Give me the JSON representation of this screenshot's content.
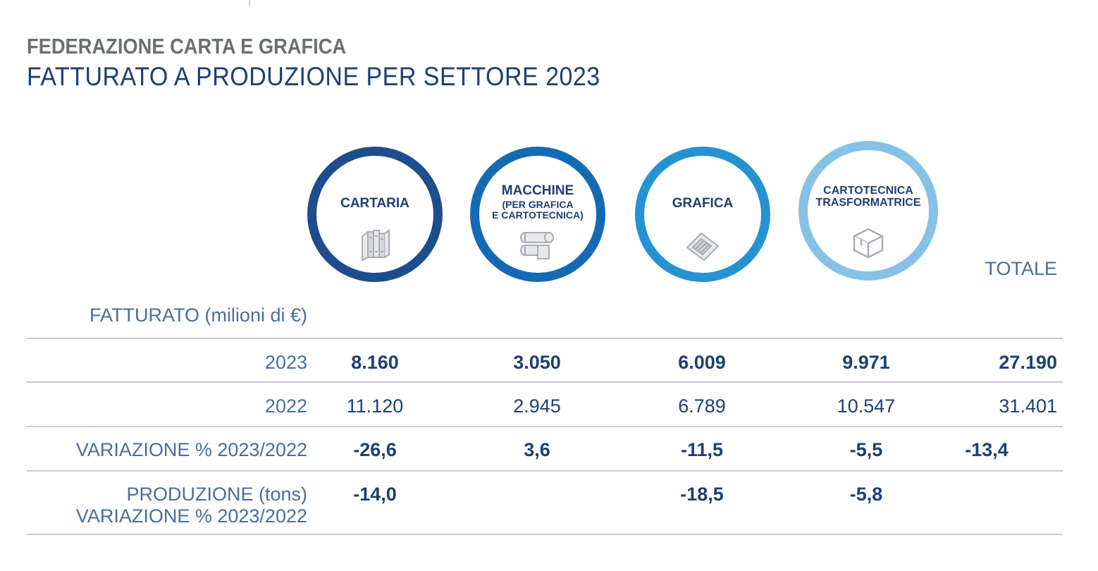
{
  "header": {
    "org": "FEDERAZIONE CARTA E GRAFICA",
    "title": "FATTURATO A PRODUZIONE PER SETTORE 2023"
  },
  "sectors": [
    {
      "label": "CARTARIA",
      "sub": "",
      "icon": "books-icon",
      "color": "#1d4d8c"
    },
    {
      "label": "MACCHINE",
      "sub": "(PER GRAFICA",
      "sub2": "E CARTOTECNICA)",
      "icon": "printing-machine-icon",
      "color": "#156bb3"
    },
    {
      "label": "GRAFICA",
      "sub": "",
      "icon": "newspaper-icon",
      "color": "#2592d3"
    },
    {
      "label": "CARTOTECNICA",
      "sub": "TRASFORMATRICE",
      "icon": "box-icon",
      "color": "#86c2e6"
    }
  ],
  "totale_label": "TOTALE",
  "section_label": "FATTURATO (milioni di €)",
  "rows": {
    "r2023": {
      "label": "2023",
      "values": [
        "8.160",
        "3.050",
        "6.009",
        "9.971",
        "27.190"
      ]
    },
    "r2022": {
      "label": "2022",
      "values": [
        "11.120",
        "2.945",
        "6.789",
        "10.547",
        "31.401"
      ]
    },
    "var": {
      "label": "VARIAZIONE % 2023/2022",
      "values": [
        "-26,6",
        "3,6",
        "-11,5",
        "-5,5",
        "-13,4"
      ]
    },
    "prod": {
      "label1": "PRODUZIONE (tons)",
      "label2": "VARIAZIONE % 2023/2022",
      "values": [
        "-14,0",
        "",
        "-18,5",
        "-5,8",
        ""
      ]
    }
  },
  "chart_data": {
    "type": "table",
    "title": "FATTURATO A PRODUZIONE PER SETTORE 2023",
    "columns": [
      "CARTARIA",
      "MACCHINE (PER GRAFICA E CARTOTECNICA)",
      "GRAFICA",
      "CARTOTECNICA TRASFORMATRICE",
      "TOTALE"
    ],
    "rows": [
      {
        "name": "2023",
        "values": [
          8160,
          3050,
          6009,
          9971,
          27190
        ]
      },
      {
        "name": "2022",
        "values": [
          11120,
          2945,
          6789,
          10547,
          31401
        ]
      },
      {
        "name": "VARIAZIONE % 2023/2022",
        "values": [
          -26.6,
          3.6,
          -11.5,
          -5.5,
          -13.4
        ]
      },
      {
        "name": "PRODUZIONE (tons) VARIAZIONE % 2023/2022",
        "values": [
          -14.0,
          null,
          -18.5,
          -5.8,
          null
        ]
      }
    ]
  }
}
